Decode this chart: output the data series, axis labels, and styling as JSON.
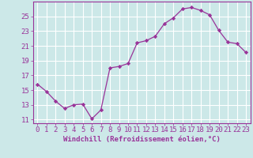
{
  "x": [
    0,
    1,
    2,
    3,
    4,
    5,
    6,
    7,
    8,
    9,
    10,
    11,
    12,
    13,
    14,
    15,
    16,
    17,
    18,
    19,
    20,
    21,
    22,
    23
  ],
  "y": [
    15.8,
    14.8,
    13.5,
    12.5,
    13.0,
    13.1,
    11.1,
    12.3,
    18.0,
    18.2,
    18.6,
    21.4,
    21.7,
    22.3,
    24.0,
    24.8,
    26.0,
    26.2,
    25.8,
    25.2,
    23.1,
    21.5,
    21.3,
    20.1
  ],
  "line_color": "#993399",
  "marker": "D",
  "marker_size": 2.2,
  "bg_color": "#cce8e8",
  "grid_color": "#ffffff",
  "xlabel": "Windchill (Refroidissement éolien,°C)",
  "yticks": [
    11,
    13,
    15,
    17,
    19,
    21,
    23,
    25
  ],
  "xticks": [
    0,
    1,
    2,
    3,
    4,
    5,
    6,
    7,
    8,
    9,
    10,
    11,
    12,
    13,
    14,
    15,
    16,
    17,
    18,
    19,
    20,
    21,
    22,
    23
  ],
  "ylim": [
    10.5,
    27.0
  ],
  "xlim": [
    -0.5,
    23.5
  ],
  "tick_color": "#993399",
  "label_fontsize": 6.5,
  "tick_fontsize": 6.5
}
